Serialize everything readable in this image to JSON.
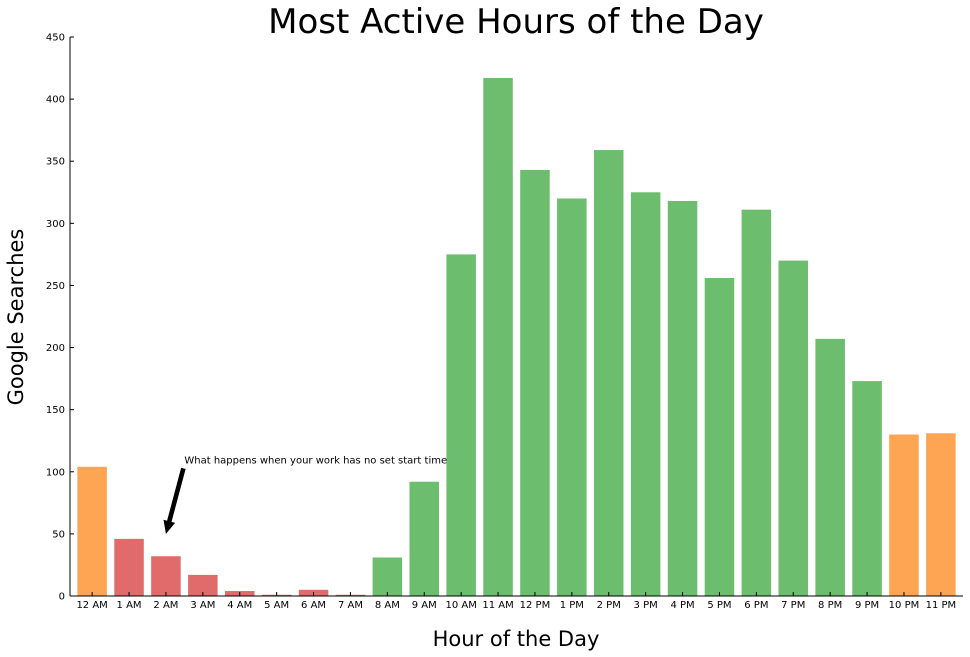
{
  "chart_data": {
    "type": "bar",
    "title": "Most Active Hours of the Day",
    "xlabel": "Hour of the Day",
    "ylabel": "Google Searches",
    "ylim": [
      0,
      450
    ],
    "yticks": [
      0,
      50,
      100,
      150,
      200,
      250,
      300,
      350,
      400,
      450
    ],
    "grid": false,
    "legend": "none",
    "categories": [
      "12 AM",
      "1 AM",
      "2 AM",
      "3 AM",
      "4 AM",
      "5 AM",
      "6 AM",
      "7 AM",
      "8 AM",
      "9 AM",
      "10 AM",
      "11 AM",
      "12 PM",
      "1 PM",
      "2 PM",
      "3 PM",
      "4 PM",
      "5 PM",
      "6 PM",
      "7 PM",
      "8 PM",
      "9 PM",
      "10 PM",
      "11 PM"
    ],
    "values": [
      104,
      46,
      32,
      17,
      4,
      1,
      5,
      1,
      31,
      92,
      275,
      417,
      343,
      320,
      359,
      325,
      318,
      256,
      311,
      270,
      207,
      173,
      130,
      131
    ],
    "bar_colors": [
      "#fda553",
      "#e16a6b",
      "#e16a6b",
      "#e16a6b",
      "#e16a6b",
      "#e16a6b",
      "#e16a6b",
      "#e16a6b",
      "#6cbd6d",
      "#6cbd6d",
      "#6cbd6d",
      "#6cbd6d",
      "#6cbd6d",
      "#6cbd6d",
      "#6cbd6d",
      "#6cbd6d",
      "#6cbd6d",
      "#6cbd6d",
      "#6cbd6d",
      "#6cbd6d",
      "#6cbd6d",
      "#6cbd6d",
      "#fda553",
      "#fda553"
    ],
    "annotation": {
      "text": "What happens when your work has no set start time",
      "target_category": "2 AM",
      "target_value": 50,
      "text_value": 110
    }
  }
}
